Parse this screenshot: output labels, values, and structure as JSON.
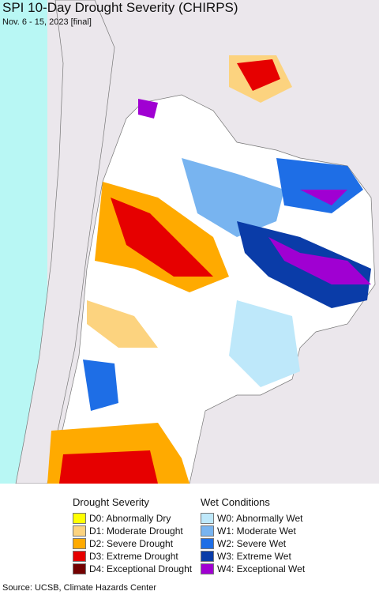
{
  "header": {
    "title": "SPI 10-Day Drought Severity (CHIRPS)",
    "subtitle": "Nov. 6 - 15, 2023 [final]"
  },
  "legend": {
    "drought": {
      "title": "Drought Severity",
      "items": [
        {
          "label": "D0: Abnormally Dry",
          "color": "#ffff00"
        },
        {
          "label": "D1: Moderate Drought",
          "color": "#fcd37f"
        },
        {
          "label": "D2: Severe Drought",
          "color": "#ffaa00"
        },
        {
          "label": "D3: Extreme Drought",
          "color": "#e60000"
        },
        {
          "label": "D4: Exceptional Drought",
          "color": "#730000"
        }
      ]
    },
    "wet": {
      "title": "Wet Conditions",
      "items": [
        {
          "label": "W0: Abnormally Wet",
          "color": "#bee8fa"
        },
        {
          "label": "W1: Moderate Wet",
          "color": "#78b4f0"
        },
        {
          "label": "W2: Severe Wet",
          "color": "#1e6ee6"
        },
        {
          "label": "W3: Extreme Wet",
          "color": "#0a3ca8"
        },
        {
          "label": "W4: Exceptional Wet",
          "color": "#a000d2"
        }
      ]
    }
  },
  "footer": {
    "source": "Source: UCSB, Climate Hazards Center"
  }
}
